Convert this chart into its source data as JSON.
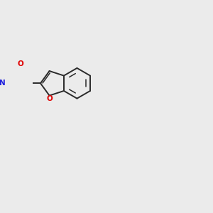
{
  "background_color": "#ebebeb",
  "bond_color": "#2a2a2a",
  "atom_colors": {
    "O_carbonyl": "#e00000",
    "O_furan": "#e00000",
    "N": "#2020dd"
  },
  "figsize": [
    3.0,
    3.0
  ],
  "dpi": 100,
  "lw": 1.4,
  "lw_inner": 1.1
}
